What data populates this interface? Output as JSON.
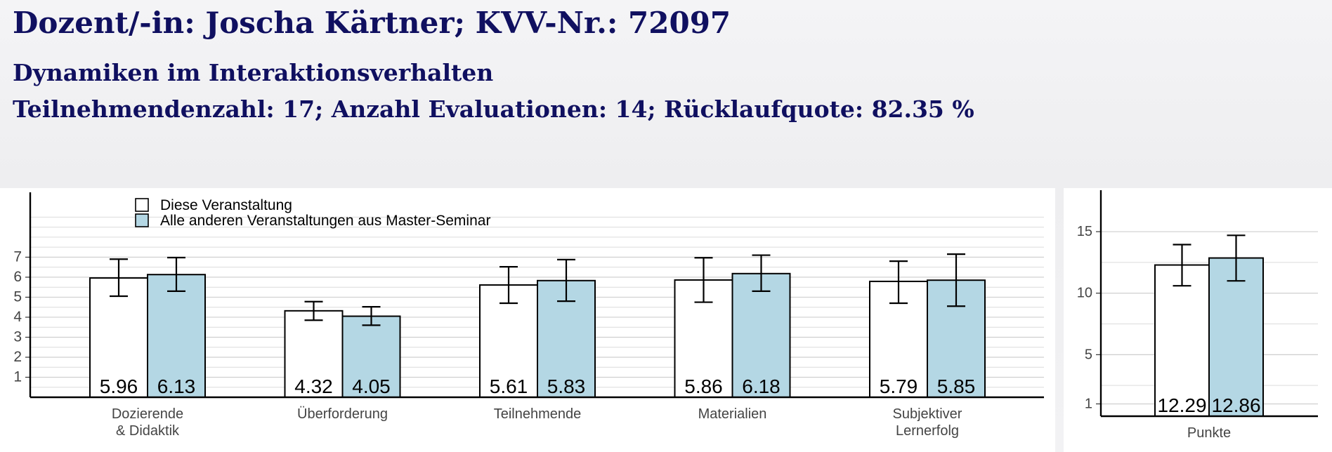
{
  "header": {
    "title": "Dozent/-in: Joscha Kärtner; KVV-Nr.: 72097",
    "course": "Dynamiken im Interaktionsverhalten",
    "stats": "Teilnehmendenzahl: 17; Anzahl Evaluationen: 14; Rücklaufquote: 82.35 %"
  },
  "colors": {
    "header_text": "#101060",
    "this_course_fill": "#ffffff",
    "others_fill": "#b4d7e4",
    "bar_stroke": "#000000"
  },
  "chart_data": [
    {
      "type": "bar",
      "categories": [
        [
          "Dozierende",
          "& Didaktik"
        ],
        [
          "Überforderung"
        ],
        [
          "Teilnehmende"
        ],
        [
          "Materialien"
        ],
        [
          "Subjektiver",
          "Lernerfolg"
        ]
      ],
      "series": [
        {
          "name": "Diese Veranstaltung",
          "values": [
            5.96,
            4.32,
            5.61,
            5.86,
            5.79
          ],
          "err_low": [
            5.05,
            3.85,
            4.7,
            4.75,
            4.7
          ],
          "err_high": [
            6.9,
            4.78,
            6.52,
            6.97,
            6.8
          ]
        },
        {
          "name": "Alle anderen Veranstaltungen aus Master-Seminar",
          "values": [
            6.13,
            4.05,
            5.83,
            6.18,
            5.85
          ],
          "err_low": [
            5.3,
            3.6,
            4.8,
            5.3,
            4.55
          ],
          "err_high": [
            6.98,
            4.52,
            6.88,
            7.1,
            7.15
          ]
        }
      ],
      "value_labels": [
        [
          "5.96",
          "4.32",
          "5.61",
          "5.86",
          "5.79"
        ],
        [
          "6.13",
          "4.05",
          "5.83",
          "6.18",
          "5.85"
        ]
      ],
      "yticks": [
        1,
        2,
        3,
        4,
        5,
        6,
        7
      ],
      "ylim": [
        0,
        9.4
      ],
      "grid": true,
      "legend": "top-left"
    },
    {
      "type": "bar",
      "categories": [
        [
          "Punkte"
        ]
      ],
      "series": [
        {
          "name": "Diese Veranstaltung",
          "values": [
            12.29
          ],
          "err_low": [
            10.6
          ],
          "err_high": [
            13.95
          ]
        },
        {
          "name": "Alle anderen Veranstaltungen aus Master-Seminar",
          "values": [
            12.86
          ],
          "err_low": [
            11.0
          ],
          "err_high": [
            14.7
          ]
        }
      ],
      "value_labels": [
        [
          "12.29"
        ],
        [
          "12.86"
        ]
      ],
      "yticks": [
        1,
        5,
        10,
        15
      ],
      "ylim": [
        0,
        17.0
      ],
      "grid": true
    }
  ]
}
